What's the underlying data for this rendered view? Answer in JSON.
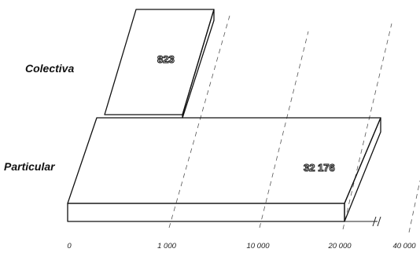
{
  "chart_data": {
    "type": "bar",
    "orientation": "horizontal",
    "style": "3d-perspective",
    "categories": [
      "Colectiva",
      "Particular"
    ],
    "values": [
      823,
      32176
    ],
    "value_labels": [
      "823",
      "32 176"
    ],
    "x_ticks": [
      0,
      1000,
      10000,
      20000,
      40000
    ],
    "x_tick_labels": [
      "0",
      "1 000",
      "10 000",
      "20 000",
      "40 000"
    ],
    "axis_break": "between 20 000 and 40 000",
    "title": "",
    "xlabel": "",
    "ylabel": "",
    "grid": true,
    "colors": {
      "bar_fill": "#f2f2f2",
      "stipple": "#555555",
      "outline": "#111111"
    }
  }
}
